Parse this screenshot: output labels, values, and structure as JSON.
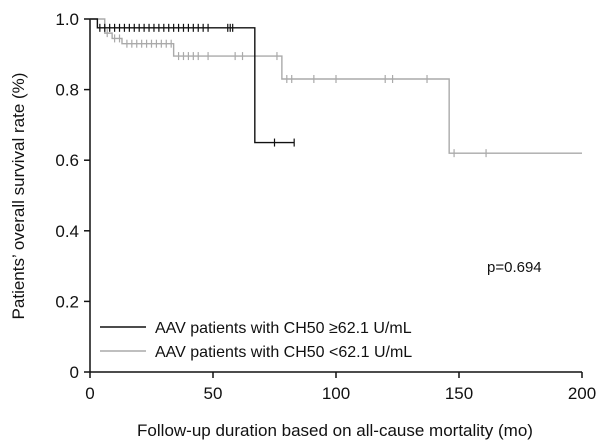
{
  "chart_data": {
    "type": "line",
    "xlabel": "Follow-up duration based on all-cause mortality (mo)",
    "ylabel": "Patients’ overall survival rate (%)",
    "xlim": [
      0,
      200
    ],
    "ylim": [
      0,
      1.0
    ],
    "x_ticks": [
      0,
      50,
      100,
      150,
      200
    ],
    "x_tick_labels": [
      "0",
      "50",
      "100",
      "150",
      "200"
    ],
    "y_ticks": [
      0,
      0.2,
      0.4,
      0.6,
      0.8,
      1.0
    ],
    "y_tick_labels": [
      "0",
      "0.2",
      "0.4",
      "0.6",
      "0.8",
      "1.0"
    ],
    "grid": false,
    "legend_position": "bottom-left",
    "annotation": "p=0.694",
    "series": [
      {
        "name": "AAV patients with CH50 ≥62.1 U/mL",
        "color": "#111111",
        "steps": [
          [
            0,
            1.0
          ],
          [
            3,
            0.975
          ],
          [
            67,
            0.65
          ],
          [
            83,
            0.65
          ]
        ],
        "censored": [
          [
            4,
            0.975
          ],
          [
            6,
            0.975
          ],
          [
            8,
            0.975
          ],
          [
            10,
            0.975
          ],
          [
            12,
            0.975
          ],
          [
            14,
            0.975
          ],
          [
            16,
            0.975
          ],
          [
            18,
            0.975
          ],
          [
            20,
            0.975
          ],
          [
            22,
            0.975
          ],
          [
            24,
            0.975
          ],
          [
            26,
            0.975
          ],
          [
            28,
            0.975
          ],
          [
            30,
            0.975
          ],
          [
            32,
            0.975
          ],
          [
            34,
            0.975
          ],
          [
            36,
            0.975
          ],
          [
            38,
            0.975
          ],
          [
            40,
            0.975
          ],
          [
            42,
            0.975
          ],
          [
            44,
            0.975
          ],
          [
            46,
            0.975
          ],
          [
            48,
            0.975
          ],
          [
            56,
            0.975
          ],
          [
            57,
            0.975
          ],
          [
            58,
            0.975
          ],
          [
            75,
            0.65
          ],
          [
            83,
            0.65
          ]
        ]
      },
      {
        "name": "AAV patients with CH50 <62.1 U/mL",
        "color": "#aaaaaa",
        "steps": [
          [
            0,
            1.0
          ],
          [
            6,
            0.96
          ],
          [
            9,
            0.945
          ],
          [
            13,
            0.93
          ],
          [
            34,
            0.895
          ],
          [
            78,
            0.83
          ],
          [
            146,
            0.62
          ],
          [
            200,
            0.62
          ]
        ],
        "censored": [
          [
            7,
            0.96
          ],
          [
            10,
            0.945
          ],
          [
            12,
            0.945
          ],
          [
            15,
            0.93
          ],
          [
            17,
            0.93
          ],
          [
            19,
            0.93
          ],
          [
            21,
            0.93
          ],
          [
            23,
            0.93
          ],
          [
            25,
            0.93
          ],
          [
            27,
            0.93
          ],
          [
            29,
            0.93
          ],
          [
            31,
            0.93
          ],
          [
            33,
            0.93
          ],
          [
            36,
            0.895
          ],
          [
            38,
            0.895
          ],
          [
            40,
            0.895
          ],
          [
            42,
            0.895
          ],
          [
            44,
            0.895
          ],
          [
            48,
            0.895
          ],
          [
            59,
            0.895
          ],
          [
            62,
            0.895
          ],
          [
            76,
            0.895
          ],
          [
            80,
            0.83
          ],
          [
            82,
            0.83
          ],
          [
            91,
            0.83
          ],
          [
            100,
            0.83
          ],
          [
            120,
            0.83
          ],
          [
            123,
            0.83
          ],
          [
            137,
            0.83
          ],
          [
            148,
            0.62
          ],
          [
            161,
            0.62
          ]
        ]
      }
    ]
  }
}
